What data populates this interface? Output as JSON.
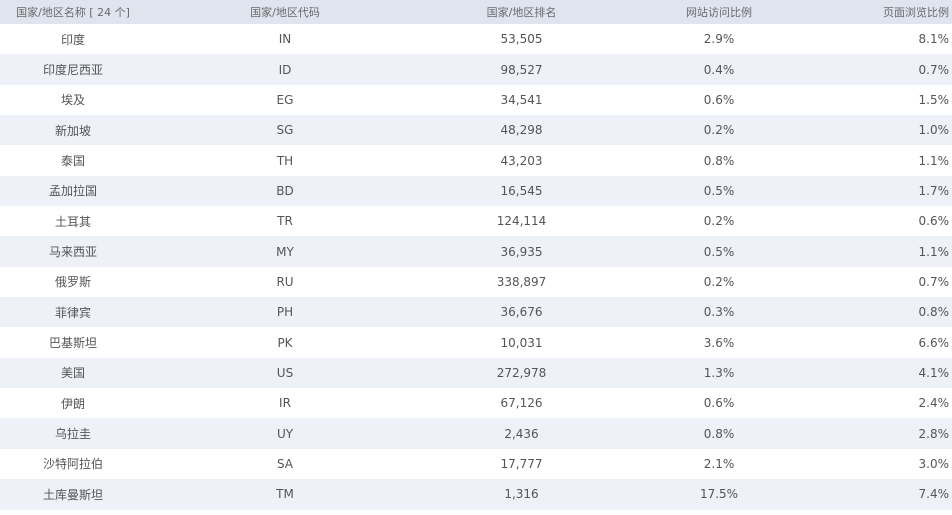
{
  "table": {
    "headers": [
      "国家/地区名称 [ 24 个]",
      "国家/地区代码",
      "国家/地区排名",
      "网站访问比例",
      "页面浏览比例"
    ],
    "rows": [
      [
        "印度",
        "IN",
        "53,505",
        "2.9%",
        "8.1%"
      ],
      [
        "印度尼西亚",
        "ID",
        "98,527",
        "0.4%",
        "0.7%"
      ],
      [
        "埃及",
        "EG",
        "34,541",
        "0.6%",
        "1.5%"
      ],
      [
        "新加坡",
        "SG",
        "48,298",
        "0.2%",
        "1.0%"
      ],
      [
        "泰国",
        "TH",
        "43,203",
        "0.8%",
        "1.1%"
      ],
      [
        "孟加拉国",
        "BD",
        "16,545",
        "0.5%",
        "1.7%"
      ],
      [
        "土耳其",
        "TR",
        "124,114",
        "0.2%",
        "0.6%"
      ],
      [
        "马来西亚",
        "MY",
        "36,935",
        "0.5%",
        "1.1%"
      ],
      [
        "俄罗斯",
        "RU",
        "338,897",
        "0.2%",
        "0.7%"
      ],
      [
        "菲律宾",
        "PH",
        "36,676",
        "0.3%",
        "0.8%"
      ],
      [
        "巴基斯坦",
        "PK",
        "10,031",
        "3.6%",
        "6.6%"
      ],
      [
        "美国",
        "US",
        "272,978",
        "1.3%",
        "4.1%"
      ],
      [
        "伊朗",
        "IR",
        "67,126",
        "0.6%",
        "2.4%"
      ],
      [
        "乌拉圭",
        "UY",
        "2,436",
        "0.8%",
        "2.8%"
      ],
      [
        "沙特阿拉伯",
        "SA",
        "17,777",
        "2.1%",
        "3.0%"
      ],
      [
        "土库曼斯坦",
        "TM",
        "1,316",
        "17.5%",
        "7.4%"
      ]
    ]
  }
}
